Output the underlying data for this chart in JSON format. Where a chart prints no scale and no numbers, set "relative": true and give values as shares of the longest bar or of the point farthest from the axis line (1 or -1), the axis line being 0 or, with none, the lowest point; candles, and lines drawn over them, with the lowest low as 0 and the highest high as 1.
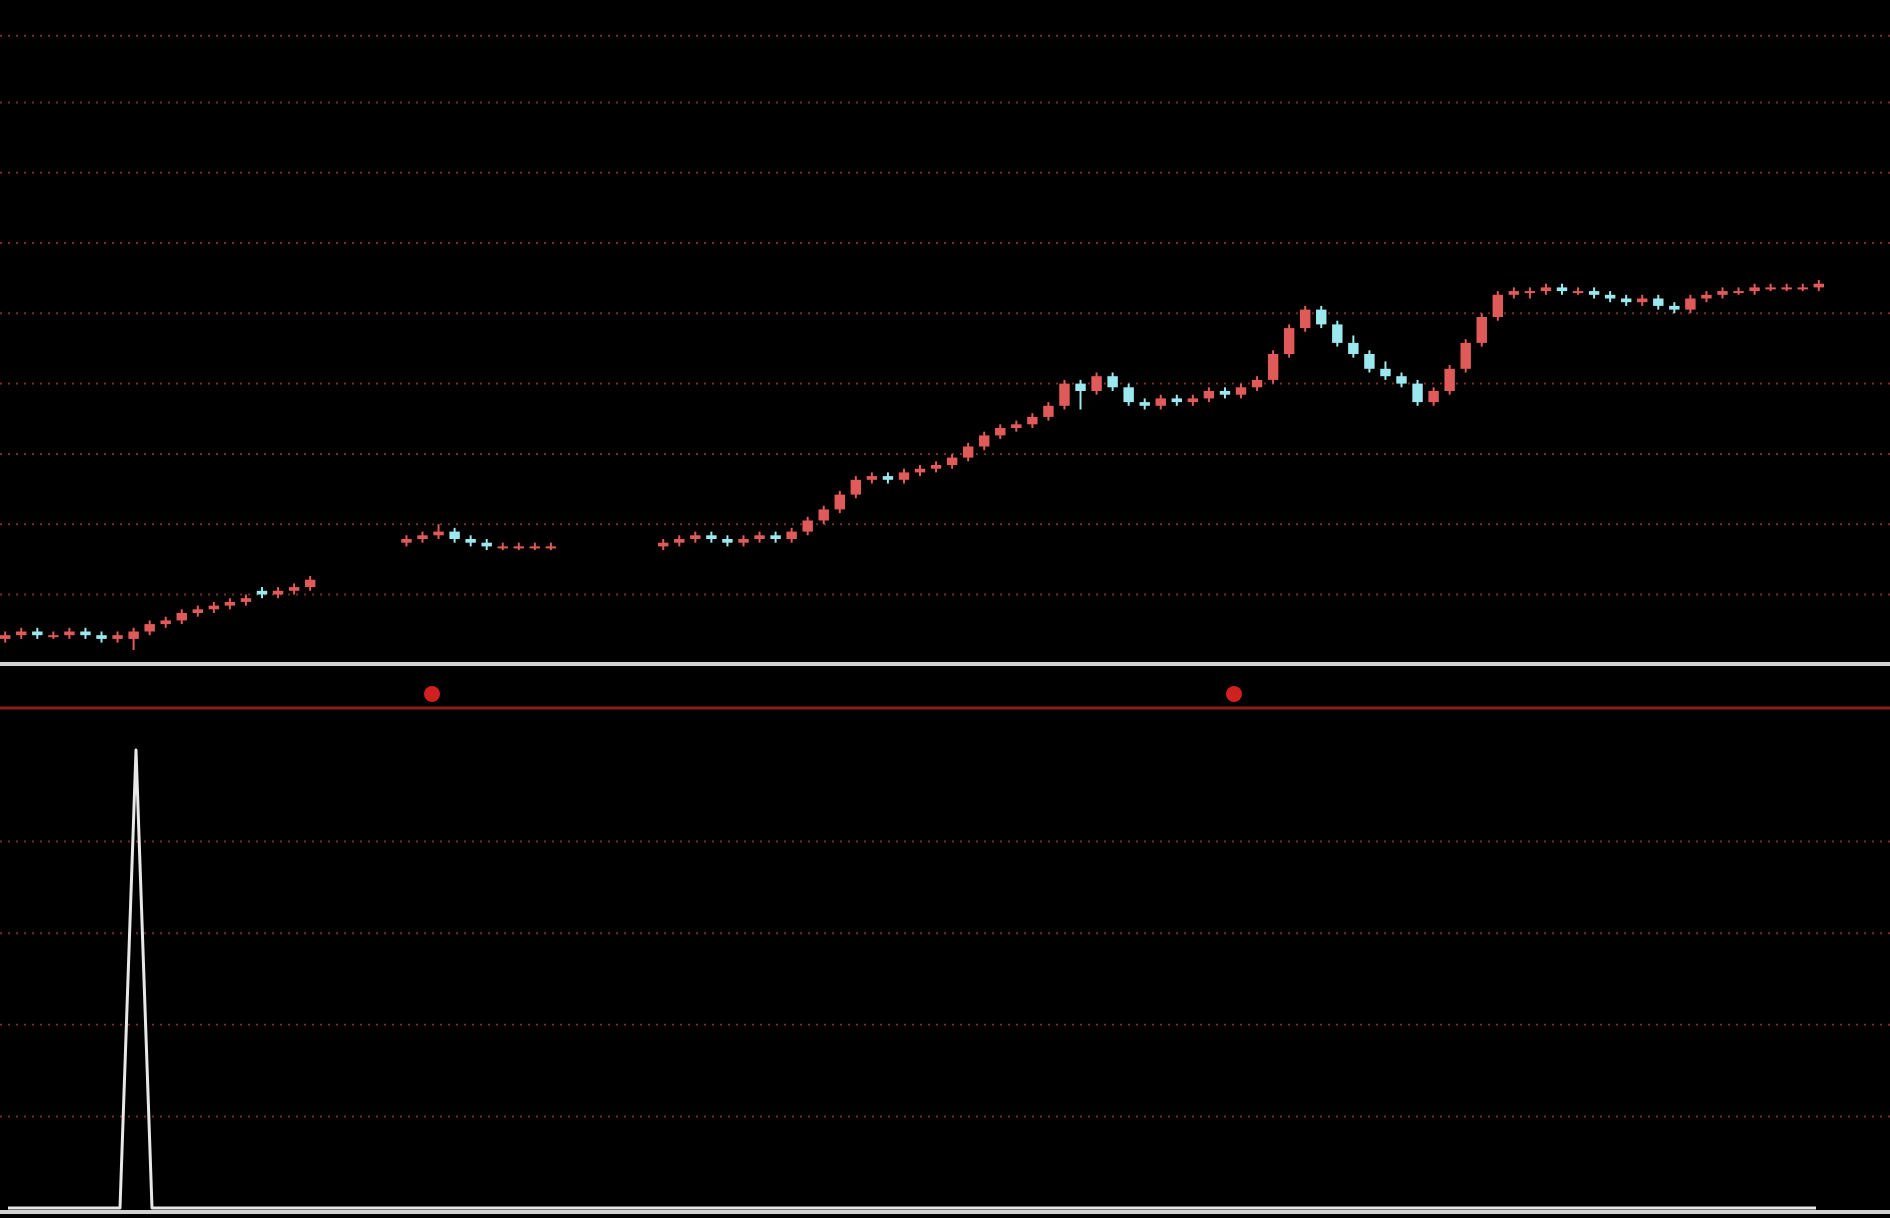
{
  "chart_data": [
    {
      "type": "candlestick",
      "relative": true,
      "ref_lines": [
        {
          "axis": "y",
          "value": 0.15,
          "color": "#7a2a2a",
          "line_style": "dotted"
        },
        {
          "axis": "y",
          "value": 0.34,
          "color": "#7a2a2a",
          "line_style": "dotted"
        },
        {
          "axis": "y",
          "value": 0.53,
          "color": "#7a2a2a",
          "line_style": "dotted"
        },
        {
          "axis": "y",
          "value": 0.72,
          "color": "#7a2a2a",
          "line_style": "dotted"
        },
        {
          "axis": "y",
          "value": 0.91,
          "color": "#7a2a2a",
          "line_style": "dotted"
        },
        {
          "axis": "y",
          "value": 1.1,
          "color": "#7a2a2a",
          "line_style": "dotted"
        },
        {
          "axis": "y",
          "value": 1.29,
          "color": "#7a2a2a",
          "line_style": "dotted"
        },
        {
          "axis": "y",
          "value": 1.48,
          "color": "#7a2a2a",
          "line_style": "dotted"
        },
        {
          "axis": "y",
          "value": 1.66,
          "color": "#7a2a2a",
          "line_style": "dotted"
        }
      ],
      "categories": [
        null,
        null,
        null,
        null,
        null,
        null,
        null,
        null,
        null,
        null,
        null,
        null,
        null,
        null,
        null,
        null,
        null,
        null,
        null,
        null,
        null,
        null,
        null,
        null,
        null,
        null,
        null,
        null,
        null,
        null,
        null,
        null,
        null,
        null,
        null,
        null,
        null,
        null,
        null,
        null,
        null,
        null,
        null,
        null,
        null,
        null,
        null,
        null,
        null,
        null,
        null,
        null,
        null,
        null,
        null,
        null,
        null,
        null,
        null,
        null,
        null,
        null,
        null,
        null,
        null,
        null,
        null,
        null,
        null,
        null,
        null,
        null,
        null,
        null,
        null,
        null,
        null,
        null,
        null,
        null,
        null,
        null,
        null,
        null,
        null,
        null,
        null,
        null,
        null,
        null,
        null,
        null,
        null,
        null,
        null,
        null,
        null,
        null,
        null,
        null,
        null,
        null,
        null,
        null,
        null,
        null,
        null,
        null,
        null,
        null,
        null,
        null,
        null,
        null
      ],
      "ohlc": [
        [
          0.03,
          0.05,
          0.02,
          0.04
        ],
        [
          0.04,
          0.06,
          0.03,
          0.05
        ],
        [
          0.05,
          0.06,
          0.03,
          0.04
        ],
        [
          0.04,
          0.05,
          0.03,
          0.04
        ],
        [
          0.04,
          0.06,
          0.03,
          0.05
        ],
        [
          0.05,
          0.06,
          0.03,
          0.04
        ],
        [
          0.04,
          0.05,
          0.02,
          0.03
        ],
        [
          0.03,
          0.05,
          0.02,
          0.04
        ],
        [
          0.03,
          0.06,
          0,
          0.05
        ],
        [
          0.05,
          0.08,
          0.04,
          0.07
        ],
        [
          0.07,
          0.09,
          0.06,
          0.08
        ],
        [
          0.08,
          0.11,
          0.07,
          0.1
        ],
        [
          0.1,
          0.12,
          0.09,
          0.11
        ],
        [
          0.11,
          0.13,
          0.1,
          0.12
        ],
        [
          0.12,
          0.14,
          0.11,
          0.13
        ],
        [
          0.13,
          0.15,
          0.12,
          0.14
        ],
        [
          0.16,
          0.17,
          0.14,
          0.15
        ],
        [
          0.15,
          0.17,
          0.14,
          0.16
        ],
        [
          0.16,
          0.18,
          0.15,
          0.17
        ],
        [
          0.17,
          0.2,
          0.16,
          0.19
        ],
        null,
        null,
        null,
        null,
        null,
        [
          0.29,
          0.31,
          0.28,
          0.3
        ],
        [
          0.3,
          0.32,
          0.29,
          0.31
        ],
        [
          0.31,
          0.34,
          0.3,
          0.32
        ],
        [
          0.32,
          0.33,
          0.29,
          0.3
        ],
        [
          0.3,
          0.31,
          0.28,
          0.29
        ],
        [
          0.29,
          0.3,
          0.27,
          0.28
        ],
        [
          0.28,
          0.29,
          0.27,
          0.28
        ],
        [
          0.28,
          0.29,
          0.27,
          0.28
        ],
        [
          0.28,
          0.29,
          0.27,
          0.28
        ],
        [
          0.28,
          0.29,
          0.27,
          0.28
        ],
        null,
        null,
        null,
        null,
        null,
        null,
        [
          0.28,
          0.3,
          0.27,
          0.29
        ],
        [
          0.29,
          0.31,
          0.28,
          0.3
        ],
        [
          0.3,
          0.32,
          0.29,
          0.31
        ],
        [
          0.31,
          0.32,
          0.29,
          0.3
        ],
        [
          0.3,
          0.31,
          0.28,
          0.29
        ],
        [
          0.29,
          0.31,
          0.28,
          0.3
        ],
        [
          0.3,
          0.32,
          0.29,
          0.31
        ],
        [
          0.31,
          0.32,
          0.29,
          0.3
        ],
        [
          0.3,
          0.33,
          0.29,
          0.32
        ],
        [
          0.32,
          0.36,
          0.31,
          0.35
        ],
        [
          0.35,
          0.39,
          0.34,
          0.38
        ],
        [
          0.38,
          0.43,
          0.37,
          0.42
        ],
        [
          0.42,
          0.47,
          0.41,
          0.46
        ],
        [
          0.46,
          0.48,
          0.45,
          0.47
        ],
        [
          0.47,
          0.48,
          0.45,
          0.46
        ],
        [
          0.46,
          0.49,
          0.45,
          0.48
        ],
        [
          0.48,
          0.5,
          0.47,
          0.49
        ],
        [
          0.49,
          0.51,
          0.48,
          0.5
        ],
        [
          0.5,
          0.53,
          0.49,
          0.52
        ],
        [
          0.52,
          0.56,
          0.51,
          0.55
        ],
        [
          0.55,
          0.59,
          0.54,
          0.58
        ],
        [
          0.58,
          0.61,
          0.57,
          0.6
        ],
        [
          0.6,
          0.62,
          0.59,
          0.61
        ],
        [
          0.61,
          0.64,
          0.6,
          0.63
        ],
        [
          0.63,
          0.67,
          0.62,
          0.66
        ],
        [
          0.66,
          0.73,
          0.65,
          0.72
        ],
        [
          0.72,
          0.73,
          0.65,
          0.7
        ],
        [
          0.7,
          0.75,
          0.69,
          0.74
        ],
        [
          0.74,
          0.75,
          0.7,
          0.71
        ],
        [
          0.71,
          0.72,
          0.66,
          0.67
        ],
        [
          0.67,
          0.68,
          0.65,
          0.66
        ],
        [
          0.66,
          0.69,
          0.65,
          0.68
        ],
        [
          0.68,
          0.69,
          0.66,
          0.67
        ],
        [
          0.67,
          0.69,
          0.66,
          0.68
        ],
        [
          0.68,
          0.71,
          0.67,
          0.7
        ],
        [
          0.7,
          0.71,
          0.68,
          0.69
        ],
        [
          0.69,
          0.72,
          0.68,
          0.71
        ],
        [
          0.71,
          0.74,
          0.7,
          0.73
        ],
        [
          0.73,
          0.81,
          0.72,
          0.8
        ],
        [
          0.8,
          0.88,
          0.79,
          0.87
        ],
        [
          0.87,
          0.93,
          0.86,
          0.92
        ],
        [
          0.92,
          0.93,
          0.87,
          0.88
        ],
        [
          0.88,
          0.89,
          0.82,
          0.83
        ],
        [
          0.83,
          0.85,
          0.79,
          0.8
        ],
        [
          0.8,
          0.81,
          0.75,
          0.76
        ],
        [
          0.76,
          0.78,
          0.73,
          0.74
        ],
        [
          0.74,
          0.75,
          0.71,
          0.72
        ],
        [
          0.72,
          0.73,
          0.66,
          0.67
        ],
        [
          0.67,
          0.71,
          0.66,
          0.7
        ],
        [
          0.7,
          0.77,
          0.69,
          0.76
        ],
        [
          0.76,
          0.84,
          0.75,
          0.83
        ],
        [
          0.83,
          0.91,
          0.82,
          0.9
        ],
        [
          0.9,
          0.97,
          0.89,
          0.96
        ],
        [
          0.96,
          0.98,
          0.95,
          0.97
        ],
        [
          0.97,
          0.98,
          0.95,
          0.97
        ],
        [
          0.97,
          0.99,
          0.96,
          0.98
        ],
        [
          0.98,
          0.99,
          0.96,
          0.97
        ],
        [
          0.97,
          0.98,
          0.96,
          0.97
        ],
        [
          0.97,
          0.98,
          0.95,
          0.96
        ],
        [
          0.96,
          0.97,
          0.94,
          0.95
        ],
        [
          0.95,
          0.96,
          0.93,
          0.94
        ],
        [
          0.94,
          0.96,
          0.93,
          0.95
        ],
        [
          0.95,
          0.96,
          0.92,
          0.93
        ],
        [
          0.93,
          0.94,
          0.91,
          0.92
        ],
        [
          0.92,
          0.96,
          0.91,
          0.95
        ],
        [
          0.95,
          0.97,
          0.94,
          0.96
        ],
        [
          0.96,
          0.98,
          0.95,
          0.97
        ],
        [
          0.97,
          0.98,
          0.96,
          0.97
        ],
        [
          0.97,
          0.99,
          0.96,
          0.98
        ],
        [
          0.98,
          0.99,
          0.97,
          0.98
        ],
        [
          0.98,
          0.99,
          0.97,
          0.98
        ],
        [
          0.98,
          0.99,
          0.97,
          0.98
        ],
        [
          0.98,
          1,
          0.97,
          0.99
        ]
      ],
      "colors": [
        "#e05a5a",
        "#e05a5a",
        "#9be8ee",
        "#e05a5a",
        "#e05a5a",
        "#9be8ee",
        "#9be8ee",
        "#e05a5a",
        "#e05a5a",
        "#e05a5a",
        "#e05a5a",
        "#e05a5a",
        "#e05a5a",
        "#e05a5a",
        "#e05a5a",
        "#e05a5a",
        "#9be8ee",
        "#e05a5a",
        "#e05a5a",
        "#e05a5a",
        null,
        null,
        null,
        null,
        null,
        "#e05a5a",
        "#e05a5a",
        "#e05a5a",
        "#9be8ee",
        "#9be8ee",
        "#9be8ee",
        "#e05a5a",
        "#e05a5a",
        "#e05a5a",
        "#e05a5a",
        null,
        null,
        null,
        null,
        null,
        null,
        "#e05a5a",
        "#e05a5a",
        "#e05a5a",
        "#9be8ee",
        "#9be8ee",
        "#e05a5a",
        "#e05a5a",
        "#9be8ee",
        "#e05a5a",
        "#e05a5a",
        "#e05a5a",
        "#e05a5a",
        "#e05a5a",
        "#e05a5a",
        "#9be8ee",
        "#e05a5a",
        "#e05a5a",
        "#e05a5a",
        "#e05a5a",
        "#e05a5a",
        "#e05a5a",
        "#e05a5a",
        "#e05a5a",
        "#e05a5a",
        "#e05a5a",
        "#e05a5a",
        "#9be8ee",
        "#e05a5a",
        "#9be8ee",
        "#9be8ee",
        "#9be8ee",
        "#e05a5a",
        "#9be8ee",
        "#e05a5a",
        "#e05a5a",
        "#9be8ee",
        "#e05a5a",
        "#e05a5a",
        "#e05a5a",
        "#e05a5a",
        "#e05a5a",
        "#9be8ee",
        "#9be8ee",
        "#9be8ee",
        "#9be8ee",
        "#9be8ee",
        "#9be8ee",
        "#9be8ee",
        "#e05a5a",
        "#e05a5a",
        "#e05a5a",
        "#e05a5a",
        "#e05a5a",
        "#e05a5a",
        "#e05a5a",
        "#e05a5a",
        "#9be8ee",
        "#e05a5a",
        "#9be8ee",
        "#9be8ee",
        "#9be8ee",
        "#e05a5a",
        "#9be8ee",
        "#9be8ee",
        "#e05a5a",
        "#e05a5a",
        "#e05a5a",
        "#e05a5a",
        "#e05a5a",
        "#e05a5a",
        "#e05a5a",
        "#e05a5a",
        "#e05a5a"
      ]
    },
    {
      "type": "line",
      "relative": true,
      "ref_lines": [
        {
          "axis": "y",
          "value": 0.2,
          "color": "#7a2a2a",
          "line_style": "dotted"
        },
        {
          "axis": "y",
          "value": 0.4,
          "color": "#7a2a2a",
          "line_style": "dotted"
        },
        {
          "axis": "y",
          "value": 0.6,
          "color": "#7a2a2a",
          "line_style": "dotted"
        },
        {
          "axis": "y",
          "value": 0.8,
          "color": "#7a2a2a",
          "line_style": "dotted"
        }
      ],
      "categories": [
        null,
        null,
        null,
        null,
        null,
        null,
        null,
        null,
        null,
        null,
        null,
        null,
        null,
        null,
        null,
        null,
        null,
        null,
        null,
        null,
        null,
        null,
        null,
        null,
        null,
        null,
        null,
        null,
        null,
        null,
        null,
        null,
        null,
        null,
        null,
        null,
        null,
        null,
        null,
        null,
        null,
        null,
        null,
        null,
        null,
        null,
        null,
        null,
        null,
        null,
        null,
        null,
        null,
        null,
        null,
        null,
        null,
        null,
        null,
        null,
        null,
        null,
        null,
        null,
        null,
        null,
        null,
        null,
        null,
        null,
        null,
        null,
        null,
        null,
        null,
        null,
        null,
        null,
        null,
        null,
        null,
        null,
        null,
        null,
        null,
        null,
        null,
        null,
        null,
        null,
        null,
        null,
        null,
        null,
        null,
        null,
        null,
        null,
        null,
        null,
        null,
        null,
        null,
        null,
        null,
        null,
        null,
        null,
        null,
        null,
        null,
        null,
        null,
        null
      ],
      "series": [
        {
          "color": "#e8e8e8",
          "values": [
            0,
            0,
            0,
            0,
            0,
            0,
            0,
            0,
            1,
            0,
            0,
            0,
            0,
            0,
            0,
            0,
            0,
            0,
            0,
            0,
            0,
            0,
            0,
            0,
            0,
            0,
            0,
            0,
            0,
            0,
            0,
            0,
            0,
            0,
            0,
            0,
            0,
            0,
            0,
            0,
            0,
            0,
            0,
            0,
            0,
            0,
            0,
            0,
            0,
            0,
            0,
            0,
            0,
            0,
            0,
            0,
            0,
            0,
            0,
            0,
            0,
            0,
            0,
            0,
            0,
            0,
            0,
            0,
            0,
            0,
            0,
            0,
            0,
            0,
            0,
            0,
            0,
            0,
            0,
            0,
            0,
            0,
            0,
            0,
            0,
            0,
            0,
            0,
            0,
            0,
            0,
            0,
            0,
            0,
            0,
            0,
            0,
            0,
            0,
            0,
            0,
            0,
            0,
            0,
            0,
            0,
            0,
            0,
            0,
            0,
            0,
            0,
            0,
            0
          ]
        }
      ]
    }
  ]
}
